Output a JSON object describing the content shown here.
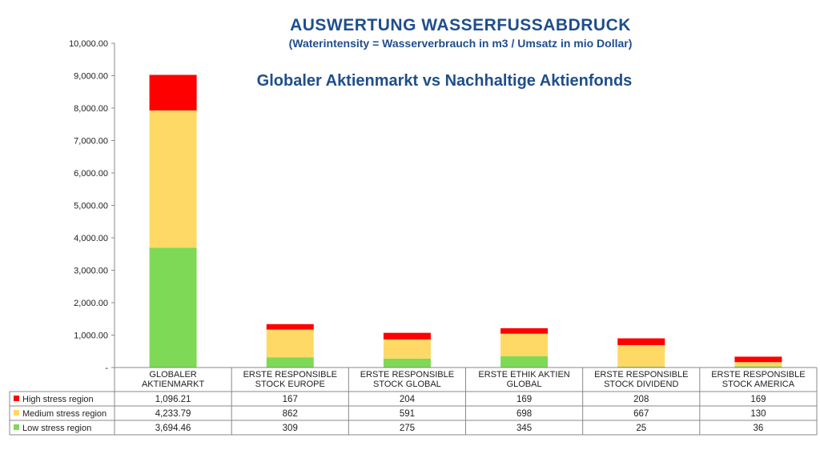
{
  "chart_data": {
    "type": "bar",
    "stacked": true,
    "title": "AUSWERTUNG WASSERFUSSABDRUCK",
    "subtitle": "(Waterintensity = Wasserverbrauch in m3 / Umsatz in mio Dollar)",
    "annotation": "Globaler Aktienmarkt vs Nachhaltige Aktienfonds",
    "ylim": [
      0,
      10000
    ],
    "yticks": [
      "-",
      "1,000.00",
      "2,000.00",
      "3,000.00",
      "4,000.00",
      "5,000.00",
      "6,000.00",
      "7,000.00",
      "8,000.00",
      "9,000.00",
      "10,000.00"
    ],
    "categories": [
      [
        "GLOBALER",
        "AKTIENMARKT"
      ],
      [
        "ERSTE RESPONSIBLE",
        "STOCK EUROPE"
      ],
      [
        "ERSTE RESPONSIBLE",
        "STOCK GLOBAL"
      ],
      [
        "ERSTE ETHIK AKTIEN",
        "GLOBAL"
      ],
      [
        "ERSTE RESPONSIBLE",
        "STOCK DIVIDEND"
      ],
      [
        "ERSTE RESPONSIBLE",
        "STOCK AMERICA"
      ]
    ],
    "series": [
      {
        "name": "High stress region",
        "color": "#FF0000",
        "values": [
          1096.21,
          167,
          204,
          169,
          208,
          169
        ],
        "labels": [
          "1,096.21",
          "167",
          "204",
          "169",
          "208",
          "169"
        ]
      },
      {
        "name": "Medium stress region",
        "color": "#FFD966",
        "values": [
          4233.79,
          862,
          591,
          698,
          667,
          130
        ],
        "labels": [
          "4,233.79",
          "862",
          "591",
          "698",
          "667",
          "130"
        ]
      },
      {
        "name": "Low stress region",
        "color": "#7ED957",
        "values": [
          3694.46,
          309,
          275,
          345,
          25,
          36
        ],
        "labels": [
          "3,694.46",
          "309",
          "275",
          "345",
          "25",
          "36"
        ]
      }
    ],
    "legend": "data-table-left",
    "grid": false
  }
}
